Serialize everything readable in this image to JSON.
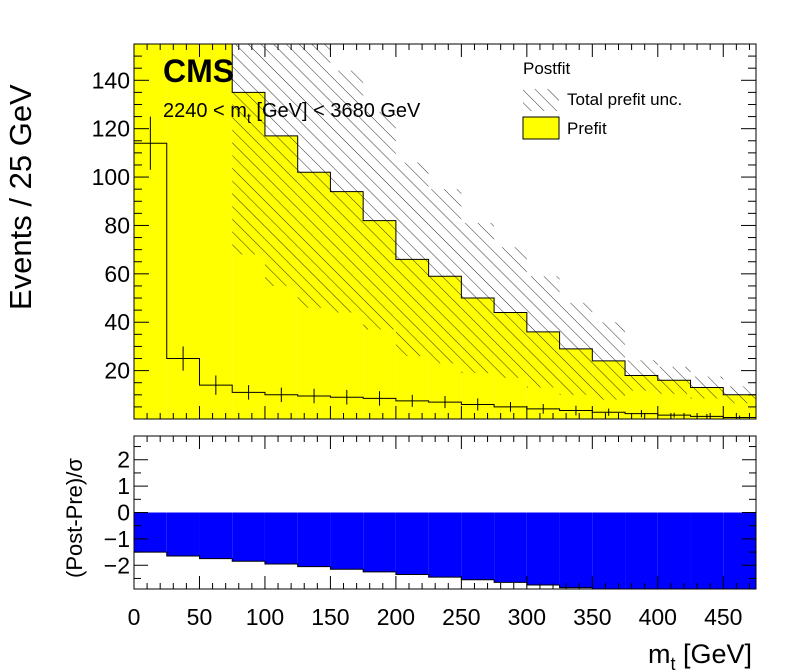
{
  "chart_data": [
    {
      "type": "histogram",
      "panel": "top",
      "ylabel": "Events / 25 GeV",
      "xlim": [
        0,
        475
      ],
      "ylim": [
        0,
        155
      ],
      "yticks": [
        20,
        40,
        60,
        80,
        100,
        120,
        140
      ],
      "annotations": {
        "experiment": "CMS",
        "selection_main": "2240 < m",
        "selection_sub": "t",
        "selection_rest": " [GeV] < 3680 GeV"
      },
      "legend": {
        "placement": "top-right",
        "header": "Postfit",
        "entries": [
          {
            "label": "Total prefit unc.",
            "style": "hatched"
          },
          {
            "label": "Prefit",
            "style": "yellow-fill"
          }
        ]
      },
      "bin_edges": [
        0,
        25,
        50,
        75,
        100,
        125,
        150,
        175,
        200,
        225,
        250,
        275,
        300,
        325,
        350,
        375,
        400,
        425,
        450,
        475
      ],
      "prefit": [
        155,
        155,
        155,
        135,
        117,
        102,
        94,
        82,
        66,
        59,
        50,
        44,
        36,
        29,
        24,
        18,
        16,
        13,
        10
      ],
      "prefit_unc": [
        null,
        null,
        null,
        67,
        62,
        56,
        50,
        45,
        40,
        36,
        31,
        27,
        23,
        19,
        16,
        null,
        null,
        null,
        null
      ],
      "postfit_x": [
        12.5,
        37.5,
        62.5,
        87.5,
        112.5,
        137.5,
        162.5,
        187.5,
        212.5,
        237.5,
        262.5,
        287.5,
        312.5,
        337.5,
        362.5,
        387.5,
        412.5,
        437.5,
        462.5
      ],
      "postfit": [
        114,
        25,
        14,
        11,
        10,
        9.5,
        9,
        8.5,
        7.5,
        7,
        6,
        5,
        4.2,
        3.5,
        2.8,
        2.2,
        1.6,
        1.1,
        0.6
      ],
      "postfit_err": [
        11,
        5,
        4,
        3,
        3,
        3,
        3,
        3,
        2.5,
        2.5,
        2.5,
        2,
        2,
        2,
        1.5,
        1.5,
        1,
        1,
        0.8
      ]
    },
    {
      "type": "histogram",
      "panel": "ratio",
      "ylabel": "(Post-Pre)/σ",
      "xlabel_main": "m",
      "xlabel_sub": "t",
      "xlabel_rest": " [GeV]",
      "xlim": [
        0,
        475
      ],
      "ylim": [
        -2.9,
        2.9
      ],
      "yticks": [
        -2,
        -1,
        0,
        1,
        2
      ],
      "xticks": [
        0,
        50,
        100,
        150,
        200,
        250,
        300,
        350,
        400,
        450
      ],
      "bin_edges": [
        0,
        25,
        50,
        75,
        100,
        125,
        150,
        175,
        200,
        225,
        250,
        275,
        300,
        325,
        350,
        375,
        400,
        425,
        450,
        475
      ],
      "pull": [
        -1.5,
        -1.65,
        -1.75,
        -1.85,
        -1.95,
        -2.05,
        -2.15,
        -2.25,
        -2.35,
        -2.45,
        -2.55,
        -2.65,
        -2.75,
        -2.85,
        -2.9,
        -2.9,
        -2.9,
        -2.9,
        -2.9
      ],
      "fill_color": "#0000ff"
    }
  ]
}
